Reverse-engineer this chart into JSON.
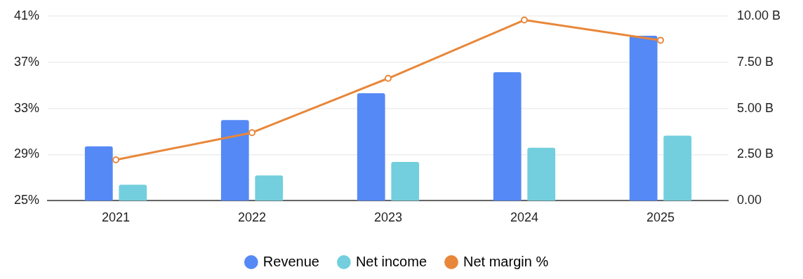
{
  "chart_data": {
    "type": "bar",
    "categories": [
      "2021",
      "2022",
      "2023",
      "2024",
      "2025"
    ],
    "series": [
      {
        "name": "Revenue",
        "color": "#5589f5",
        "axis": "y2",
        "values": [
          2.95,
          4.37,
          5.82,
          6.96,
          8.93
        ]
      },
      {
        "name": "Net income",
        "color": "#73cfdd",
        "axis": "y2",
        "values": [
          0.87,
          1.37,
          2.1,
          2.87,
          3.52
        ]
      },
      {
        "name": "Net margin %",
        "type": "line",
        "color": "#e8873a",
        "axis": "y",
        "values": [
          28.55,
          30.9,
          35.6,
          40.65,
          38.9
        ]
      }
    ],
    "ylim": [
      25,
      41
    ],
    "yticks": [
      {
        "value": 25,
        "label": "25%"
      },
      {
        "value": 29,
        "label": "29%"
      },
      {
        "value": 33,
        "label": "33%"
      },
      {
        "value": 37,
        "label": "37%"
      },
      {
        "value": 41,
        "label": "41%"
      }
    ],
    "y2lim": [
      0,
      10
    ],
    "y2ticks": [
      {
        "value": 0,
        "label": "0.00"
      },
      {
        "value": 2.5,
        "label": "2.50 B"
      },
      {
        "value": 5,
        "label": "5.00 B"
      },
      {
        "value": 7.5,
        "label": "7.50 B"
      },
      {
        "value": 10,
        "label": "10.00 B"
      }
    ],
    "grid": "y",
    "legend": "bottom",
    "marker": "circle",
    "line_style": "solid"
  }
}
